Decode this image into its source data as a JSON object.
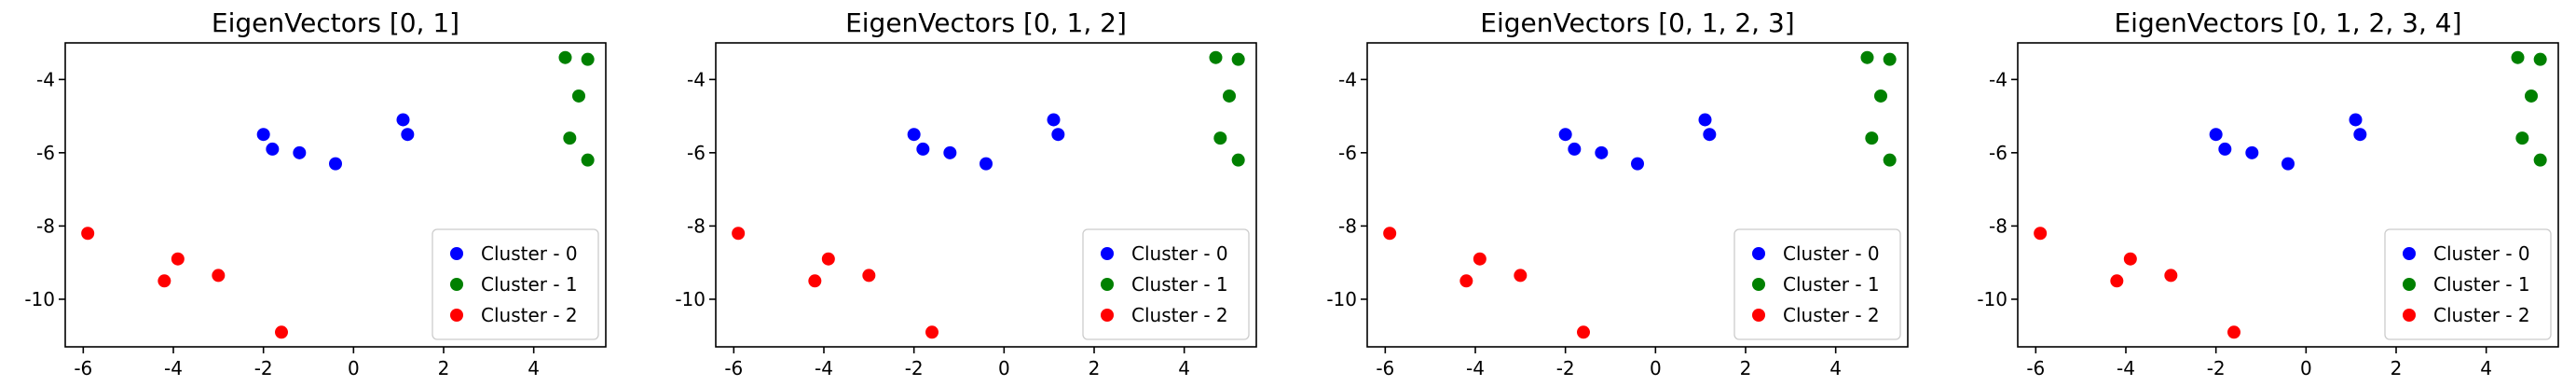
{
  "chart_data": [
    {
      "type": "scatter",
      "title": "EigenVectors [0, 1]",
      "xlabel": "",
      "ylabel": "",
      "xlim": [
        -6.4,
        5.6
      ],
      "ylim": [
        -11.3,
        -3.0
      ],
      "xticks": [
        -6,
        -4,
        -2,
        0,
        2,
        4
      ],
      "yticks": [
        -4,
        -6,
        -8,
        -10
      ],
      "grid": false,
      "legend_position": "lower-right",
      "series": [
        {
          "name": "Cluster - 0",
          "color": "#0000ff",
          "x": [
            -2.0,
            -1.8,
            -1.2,
            -0.4,
            1.1,
            1.2
          ],
          "y": [
            -5.5,
            -5.9,
            -6.0,
            -6.3,
            -5.1,
            -5.5
          ]
        },
        {
          "name": "Cluster - 1",
          "color": "#008000",
          "x": [
            4.7,
            5.2,
            5.0,
            4.8,
            5.2
          ],
          "y": [
            -3.4,
            -3.45,
            -4.45,
            -5.6,
            -6.2
          ]
        },
        {
          "name": "Cluster - 2",
          "color": "#ff0000",
          "x": [
            -5.9,
            -3.9,
            -4.2,
            -3.0,
            -1.6
          ],
          "y": [
            -8.2,
            -8.9,
            -9.5,
            -9.35,
            -10.9
          ]
        }
      ]
    },
    {
      "type": "scatter",
      "title": "EigenVectors [0, 1, 2]",
      "xlabel": "",
      "ylabel": "",
      "xlim": [
        -6.4,
        5.6
      ],
      "ylim": [
        -11.3,
        -3.0
      ],
      "xticks": [
        -6,
        -4,
        -2,
        0,
        2,
        4
      ],
      "yticks": [
        -4,
        -6,
        -8,
        -10
      ],
      "grid": false,
      "legend_position": "lower-right",
      "series": [
        {
          "name": "Cluster - 0",
          "color": "#0000ff",
          "x": [
            -2.0,
            -1.8,
            -1.2,
            -0.4,
            1.1,
            1.2
          ],
          "y": [
            -5.5,
            -5.9,
            -6.0,
            -6.3,
            -5.1,
            -5.5
          ]
        },
        {
          "name": "Cluster - 1",
          "color": "#008000",
          "x": [
            4.7,
            5.2,
            5.0,
            4.8,
            5.2
          ],
          "y": [
            -3.4,
            -3.45,
            -4.45,
            -5.6,
            -6.2
          ]
        },
        {
          "name": "Cluster - 2",
          "color": "#ff0000",
          "x": [
            -5.9,
            -3.9,
            -4.2,
            -3.0,
            -1.6
          ],
          "y": [
            -8.2,
            -8.9,
            -9.5,
            -9.35,
            -10.9
          ]
        }
      ]
    },
    {
      "type": "scatter",
      "title": "EigenVectors [0, 1, 2, 3]",
      "xlabel": "",
      "ylabel": "",
      "xlim": [
        -6.4,
        5.6
      ],
      "ylim": [
        -11.3,
        -3.0
      ],
      "xticks": [
        -6,
        -4,
        -2,
        0,
        2,
        4
      ],
      "yticks": [
        -4,
        -6,
        -8,
        -10
      ],
      "grid": false,
      "legend_position": "lower-right",
      "series": [
        {
          "name": "Cluster - 0",
          "color": "#0000ff",
          "x": [
            -2.0,
            -1.8,
            -1.2,
            -0.4,
            1.1,
            1.2
          ],
          "y": [
            -5.5,
            -5.9,
            -6.0,
            -6.3,
            -5.1,
            -5.5
          ]
        },
        {
          "name": "Cluster - 1",
          "color": "#008000",
          "x": [
            4.7,
            5.2,
            5.0,
            4.8,
            5.2
          ],
          "y": [
            -3.4,
            -3.45,
            -4.45,
            -5.6,
            -6.2
          ]
        },
        {
          "name": "Cluster - 2",
          "color": "#ff0000",
          "x": [
            -5.9,
            -3.9,
            -4.2,
            -3.0,
            -1.6
          ],
          "y": [
            -8.2,
            -8.9,
            -9.5,
            -9.35,
            -10.9
          ]
        }
      ]
    },
    {
      "type": "scatter",
      "title": "EigenVectors [0, 1, 2, 3, 4]",
      "xlabel": "",
      "ylabel": "",
      "xlim": [
        -6.4,
        5.6
      ],
      "ylim": [
        -11.3,
        -3.0
      ],
      "xticks": [
        -6,
        -4,
        -2,
        0,
        2,
        4
      ],
      "yticks": [
        -4,
        -6,
        -8,
        -10
      ],
      "grid": false,
      "legend_position": "lower-right",
      "series": [
        {
          "name": "Cluster - 0",
          "color": "#0000ff",
          "x": [
            -2.0,
            -1.8,
            -1.2,
            -0.4,
            1.1,
            1.2
          ],
          "y": [
            -5.5,
            -5.9,
            -6.0,
            -6.3,
            -5.1,
            -5.5
          ]
        },
        {
          "name": "Cluster - 1",
          "color": "#008000",
          "x": [
            4.7,
            5.2,
            5.0,
            4.8,
            5.2
          ],
          "y": [
            -3.4,
            -3.45,
            -4.45,
            -5.6,
            -6.2
          ]
        },
        {
          "name": "Cluster - 2",
          "color": "#ff0000",
          "x": [
            -5.9,
            -3.9,
            -4.2,
            -3.0,
            -1.6
          ],
          "y": [
            -8.2,
            -8.9,
            -9.5,
            -9.35,
            -10.9
          ]
        }
      ]
    }
  ]
}
